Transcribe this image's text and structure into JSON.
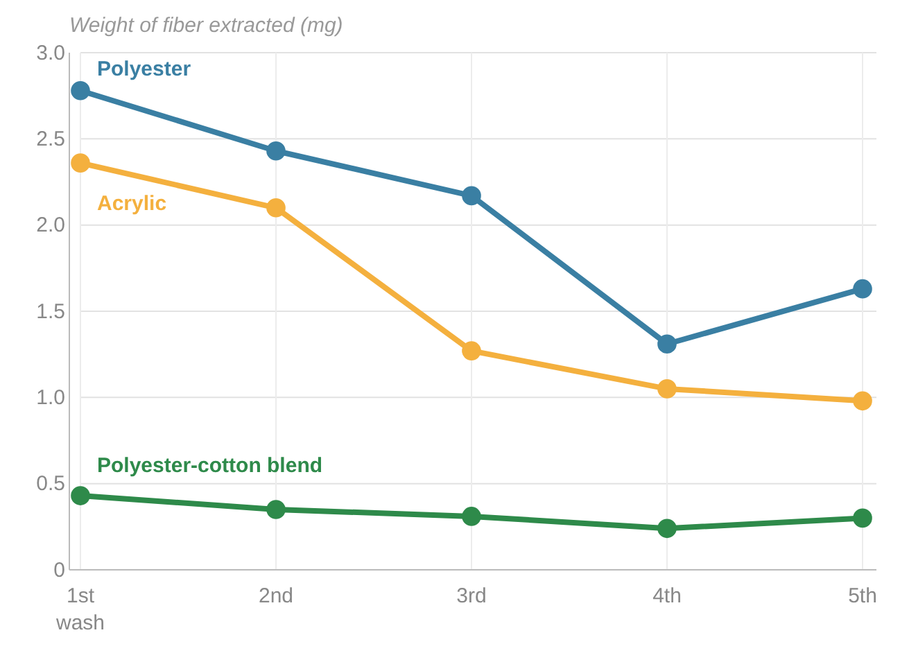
{
  "chart_data": {
    "type": "line",
    "title": "Weight of fiber extracted (mg)",
    "categories": [
      "1st wash",
      "2nd",
      "3rd",
      "4th",
      "5th"
    ],
    "series": [
      {
        "name": "Polyester",
        "color": "#3a7fa3",
        "values": [
          2.78,
          2.43,
          2.17,
          1.31,
          1.63
        ]
      },
      {
        "name": "Acrylic",
        "color": "#f4b03e",
        "values": [
          2.36,
          2.1,
          1.27,
          1.05,
          0.98
        ]
      },
      {
        "name": "Polyester-cotton blend",
        "color": "#2e8a4a",
        "values": [
          0.43,
          0.35,
          0.31,
          0.24,
          0.3
        ]
      }
    ],
    "ylim": [
      0,
      3
    ],
    "yticks": [
      0,
      0.5,
      {
        "value": 1,
        "label": "1.0"
      },
      1.5,
      {
        "value": 2,
        "label": "2.0"
      },
      2.5,
      {
        "value": 3,
        "label": "3.0"
      }
    ],
    "grid": true,
    "legend": false,
    "marker": "circle",
    "line_style": "solid"
  }
}
